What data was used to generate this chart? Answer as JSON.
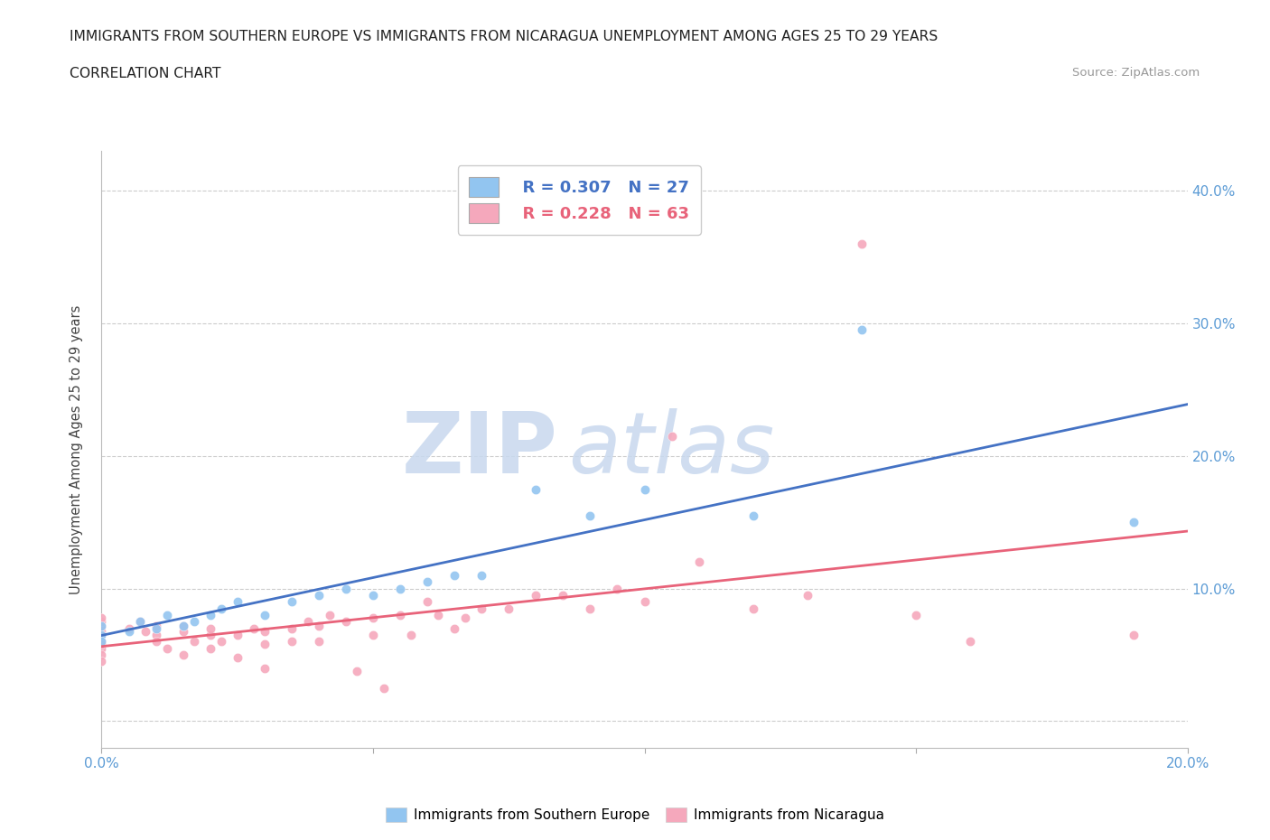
{
  "title_line1": "IMMIGRANTS FROM SOUTHERN EUROPE VS IMMIGRANTS FROM NICARAGUA UNEMPLOYMENT AMONG AGES 25 TO 29 YEARS",
  "title_line2": "CORRELATION CHART",
  "source": "Source: ZipAtlas.com",
  "ylabel": "Unemployment Among Ages 25 to 29 years",
  "xlim": [
    0.0,
    0.2
  ],
  "ylim": [
    -0.02,
    0.43
  ],
  "xticks": [
    0.0,
    0.05,
    0.1,
    0.15,
    0.2
  ],
  "xtick_labels": [
    "0.0%",
    "",
    "",
    "",
    "20.0%"
  ],
  "yticks_right": [
    0.0,
    0.1,
    0.2,
    0.3,
    0.4
  ],
  "ytick_labels_right": [
    "",
    "10.0%",
    "20.0%",
    "30.0%",
    "40.0%"
  ],
  "blue_color": "#92C5F0",
  "pink_color": "#F5A8BC",
  "blue_line_color": "#4472C4",
  "pink_line_color": "#E8637A",
  "legend_R_blue": "R = 0.307",
  "legend_N_blue": "N = 27",
  "legend_R_pink": "R = 0.228",
  "legend_N_pink": "N = 63",
  "watermark_zip": "ZIP",
  "watermark_atlas": "atlas",
  "blue_scatter_x": [
    0.0,
    0.0,
    0.0,
    0.005,
    0.007,
    0.01,
    0.012,
    0.015,
    0.017,
    0.02,
    0.022,
    0.025,
    0.03,
    0.035,
    0.04,
    0.045,
    0.05,
    0.055,
    0.06,
    0.065,
    0.07,
    0.08,
    0.09,
    0.1,
    0.12,
    0.14,
    0.19
  ],
  "blue_scatter_y": [
    0.065,
    0.072,
    0.06,
    0.068,
    0.075,
    0.07,
    0.08,
    0.072,
    0.075,
    0.08,
    0.085,
    0.09,
    0.08,
    0.09,
    0.095,
    0.1,
    0.095,
    0.1,
    0.105,
    0.11,
    0.11,
    0.175,
    0.155,
    0.175,
    0.155,
    0.295,
    0.15
  ],
  "pink_scatter_x": [
    0.0,
    0.0,
    0.0,
    0.0,
    0.0,
    0.0,
    0.0,
    0.0,
    0.0,
    0.0,
    0.005,
    0.007,
    0.008,
    0.01,
    0.01,
    0.01,
    0.012,
    0.015,
    0.015,
    0.015,
    0.017,
    0.02,
    0.02,
    0.02,
    0.022,
    0.025,
    0.025,
    0.028,
    0.03,
    0.03,
    0.03,
    0.035,
    0.035,
    0.038,
    0.04,
    0.04,
    0.042,
    0.045,
    0.047,
    0.05,
    0.05,
    0.052,
    0.055,
    0.057,
    0.06,
    0.062,
    0.065,
    0.067,
    0.07,
    0.075,
    0.08,
    0.085,
    0.09,
    0.095,
    0.1,
    0.105,
    0.11,
    0.12,
    0.13,
    0.14,
    0.15,
    0.16,
    0.19
  ],
  "pink_scatter_y": [
    0.068,
    0.072,
    0.075,
    0.078,
    0.065,
    0.06,
    0.055,
    0.058,
    0.05,
    0.045,
    0.07,
    0.075,
    0.068,
    0.065,
    0.072,
    0.06,
    0.055,
    0.068,
    0.072,
    0.05,
    0.06,
    0.065,
    0.07,
    0.055,
    0.06,
    0.065,
    0.048,
    0.07,
    0.068,
    0.058,
    0.04,
    0.07,
    0.06,
    0.075,
    0.072,
    0.06,
    0.08,
    0.075,
    0.038,
    0.078,
    0.065,
    0.025,
    0.08,
    0.065,
    0.09,
    0.08,
    0.07,
    0.078,
    0.085,
    0.085,
    0.095,
    0.095,
    0.085,
    0.1,
    0.09,
    0.215,
    0.12,
    0.085,
    0.095,
    0.36,
    0.08,
    0.06,
    0.065
  ]
}
